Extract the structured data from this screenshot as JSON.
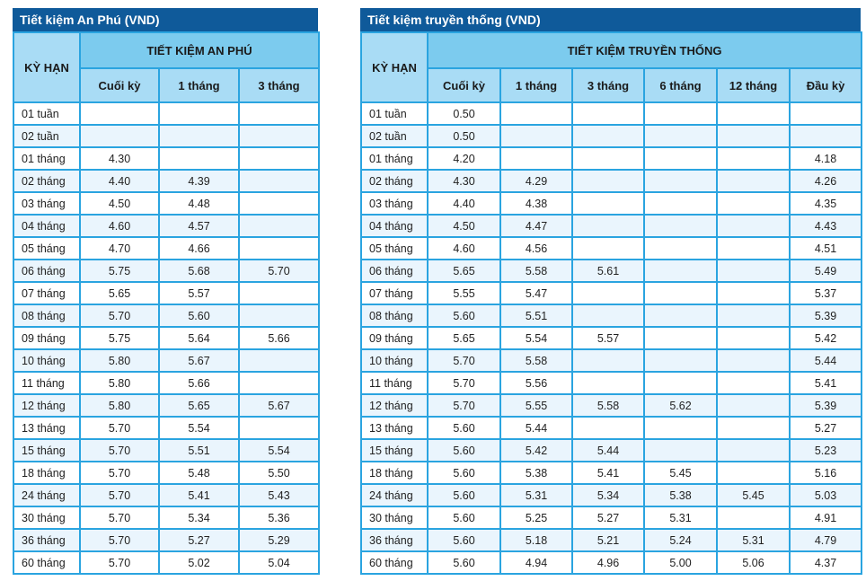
{
  "tables": [
    {
      "title": "Tiết kiệm An Phú (VND)",
      "term_header": "KỲ HẠN",
      "group_header": "TIẾT KIỆM AN PHÚ",
      "columns": [
        "Cuối kỳ",
        "1 tháng",
        "3 tháng"
      ],
      "rows": [
        [
          "01 tuần",
          "",
          "",
          ""
        ],
        [
          "02 tuần",
          "",
          "",
          ""
        ],
        [
          "01 tháng",
          "4.30",
          "",
          ""
        ],
        [
          "02 tháng",
          "4.40",
          "4.39",
          ""
        ],
        [
          "03 tháng",
          "4.50",
          "4.48",
          ""
        ],
        [
          "04 tháng",
          "4.60",
          "4.57",
          ""
        ],
        [
          "05 tháng",
          "4.70",
          "4.66",
          ""
        ],
        [
          "06 tháng",
          "5.75",
          "5.68",
          "5.70"
        ],
        [
          "07 tháng",
          "5.65",
          "5.57",
          ""
        ],
        [
          "08 tháng",
          "5.70",
          "5.60",
          ""
        ],
        [
          "09 tháng",
          "5.75",
          "5.64",
          "5.66"
        ],
        [
          "10 tháng",
          "5.80",
          "5.67",
          ""
        ],
        [
          "11 tháng",
          "5.80",
          "5.66",
          ""
        ],
        [
          "12 tháng",
          "5.80",
          "5.65",
          "5.67"
        ],
        [
          "13 tháng",
          "5.70",
          "5.54",
          ""
        ],
        [
          "15 tháng",
          "5.70",
          "5.51",
          "5.54"
        ],
        [
          "18 tháng",
          "5.70",
          "5.48",
          "5.50"
        ],
        [
          "24 tháng",
          "5.70",
          "5.41",
          "5.43"
        ],
        [
          "30 tháng",
          "5.70",
          "5.34",
          "5.36"
        ],
        [
          "36 tháng",
          "5.70",
          "5.27",
          "5.29"
        ],
        [
          "60 tháng",
          "5.70",
          "5.02",
          "5.04"
        ]
      ]
    },
    {
      "title": "Tiết kiệm truyền thống (VND)",
      "term_header": "KỲ HẠN",
      "group_header": "TIẾT KIỆM TRUYỀN THỐNG",
      "columns": [
        "Cuối kỳ",
        "1 tháng",
        "3 tháng",
        "6 tháng",
        "12 tháng",
        "Đầu kỳ"
      ],
      "rows": [
        [
          "01 tuần",
          "0.50",
          "",
          "",
          "",
          "",
          ""
        ],
        [
          "02 tuần",
          "0.50",
          "",
          "",
          "",
          "",
          ""
        ],
        [
          "01 tháng",
          "4.20",
          "",
          "",
          "",
          "",
          "4.18"
        ],
        [
          "02 tháng",
          "4.30",
          "4.29",
          "",
          "",
          "",
          "4.26"
        ],
        [
          "03 tháng",
          "4.40",
          "4.38",
          "",
          "",
          "",
          "4.35"
        ],
        [
          "04 tháng",
          "4.50",
          "4.47",
          "",
          "",
          "",
          "4.43"
        ],
        [
          "05 tháng",
          "4.60",
          "4.56",
          "",
          "",
          "",
          "4.51"
        ],
        [
          "06 tháng",
          "5.65",
          "5.58",
          "5.61",
          "",
          "",
          "5.49"
        ],
        [
          "07 tháng",
          "5.55",
          "5.47",
          "",
          "",
          "",
          "5.37"
        ],
        [
          "08 tháng",
          "5.60",
          "5.51",
          "",
          "",
          "",
          "5.39"
        ],
        [
          "09 tháng",
          "5.65",
          "5.54",
          "5.57",
          "",
          "",
          "5.42"
        ],
        [
          "10 tháng",
          "5.70",
          "5.58",
          "",
          "",
          "",
          "5.44"
        ],
        [
          "11 tháng",
          "5.70",
          "5.56",
          "",
          "",
          "",
          "5.41"
        ],
        [
          "12 tháng",
          "5.70",
          "5.55",
          "5.58",
          "5.62",
          "",
          "5.39"
        ],
        [
          "13 tháng",
          "5.60",
          "5.44",
          "",
          "",
          "",
          "5.27"
        ],
        [
          "15 tháng",
          "5.60",
          "5.42",
          "5.44",
          "",
          "",
          "5.23"
        ],
        [
          "18 tháng",
          "5.60",
          "5.38",
          "5.41",
          "5.45",
          "",
          "5.16"
        ],
        [
          "24 tháng",
          "5.60",
          "5.31",
          "5.34",
          "5.38",
          "5.45",
          "5.03"
        ],
        [
          "30 tháng",
          "5.60",
          "5.25",
          "5.27",
          "5.31",
          "",
          "4.91"
        ],
        [
          "36 tháng",
          "5.60",
          "5.18",
          "5.21",
          "5.24",
          "5.31",
          "4.79"
        ],
        [
          "60 tháng",
          "5.60",
          "4.94",
          "4.96",
          "5.00",
          "5.06",
          "4.37"
        ]
      ]
    }
  ]
}
